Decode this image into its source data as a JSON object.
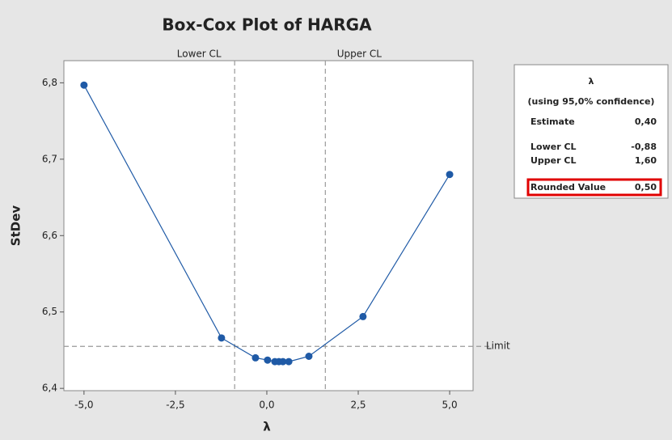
{
  "chart_data": {
    "type": "line",
    "title": "Box-Cox Plot of HARGA",
    "x_label": "λ",
    "y_label": "StDev",
    "x": [
      -5,
      -1.24,
      -0.31,
      0.02,
      0.22,
      0.33,
      0.44,
      0.6,
      1.15,
      2.63,
      5
    ],
    "series": [
      {
        "name": "StDev",
        "color": "#1f5aa6",
        "values": [
          6.797,
          6.466,
          6.44,
          6.437,
          6.435,
          6.435,
          6.435,
          6.435,
          6.442,
          6.494,
          6.68
        ]
      }
    ],
    "xlim": [
      -5.55,
      5.64
    ],
    "ylim": [
      6.397,
      6.829
    ],
    "xticks": [
      {
        "value": -5,
        "label": "-5,0"
      },
      {
        "value": -2.5,
        "label": "-2,5"
      },
      {
        "value": 0,
        "label": "0,0"
      },
      {
        "value": 2.5,
        "label": "2,5"
      },
      {
        "value": 5,
        "label": "5,0"
      }
    ],
    "yticks": [
      {
        "value": 6.4,
        "label": "6,4"
      },
      {
        "value": 6.5,
        "label": "6,5"
      },
      {
        "value": 6.6,
        "label": "6,6"
      },
      {
        "value": 6.7,
        "label": "6,7"
      },
      {
        "value": 6.8,
        "label": "6,8"
      }
    ],
    "x_reference_lines": [
      {
        "label": "Lower CL",
        "value": -0.88
      },
      {
        "label": "Upper CL",
        "value": 1.6
      }
    ],
    "y_reference_lines": [
      {
        "label": "Limit",
        "value": 6.455
      }
    ]
  },
  "info_box": {
    "title": "λ",
    "subtitle": "(using 95,0% confidence)",
    "rows": [
      [
        "Estimate",
        "0,40"
      ],
      [
        "Lower CL",
        "-0,88"
      ],
      [
        "Upper CL",
        "1,60"
      ],
      [
        "Rounded Value",
        "0,50"
      ]
    ]
  }
}
